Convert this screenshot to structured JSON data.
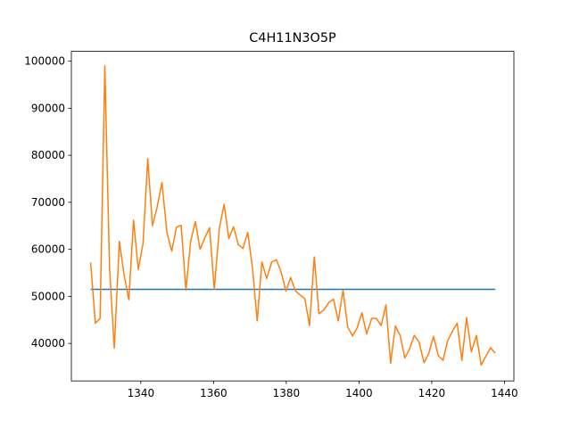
{
  "chart_data": {
    "type": "line",
    "title": "C4H11N3O5P",
    "xlim": [
      1320.9,
      1442.6
    ],
    "ylim": [
      32025,
      102090
    ],
    "xticks": [
      1340,
      1360,
      1380,
      1400,
      1420,
      1440
    ],
    "yticks": [
      40000,
      50000,
      60000,
      70000,
      80000,
      90000,
      100000
    ],
    "grid": false,
    "series": [
      {
        "color": "#1f77b4",
        "x": [
          1326.2,
          1437.5
        ],
        "values": [
          51500,
          51500
        ]
      },
      {
        "color": "#ff7f0e",
        "x": [
          1326.2,
          1327.5,
          1328.8,
          1330.1,
          1331.4,
          1332.7,
          1334.1,
          1335.4,
          1336.7,
          1338.0,
          1339.3,
          1340.6,
          1341.9,
          1343.2,
          1344.5,
          1345.8,
          1347.2,
          1348.5,
          1349.8,
          1351.1,
          1352.4,
          1353.7,
          1355.0,
          1356.3,
          1357.6,
          1358.9,
          1360.2,
          1361.6,
          1362.9,
          1364.2,
          1365.5,
          1366.8,
          1368.1,
          1369.4,
          1370.7,
          1372.0,
          1373.3,
          1374.6,
          1376.0,
          1377.3,
          1378.6,
          1379.9,
          1381.2,
          1382.5,
          1383.8,
          1385.1,
          1386.4,
          1387.7,
          1389.0,
          1390.4,
          1391.7,
          1393.0,
          1394.3,
          1395.6,
          1396.9,
          1398.2,
          1399.5,
          1400.8,
          1402.1,
          1403.5,
          1404.8,
          1406.1,
          1407.4,
          1408.7,
          1410.0,
          1411.3,
          1412.6,
          1413.9,
          1415.2,
          1416.5,
          1417.9,
          1419.2,
          1420.5,
          1421.8,
          1423.1,
          1424.4,
          1425.7,
          1427.0,
          1428.3,
          1429.6,
          1430.9,
          1432.3,
          1433.6,
          1434.9,
          1436.2,
          1437.5
        ],
        "values": [
          57200,
          44300,
          45300,
          99000,
          56000,
          39000,
          61700,
          54500,
          49300,
          66200,
          55700,
          61200,
          79300,
          65000,
          69000,
          74200,
          63500,
          59600,
          64700,
          65100,
          51300,
          61700,
          65900,
          60000,
          62400,
          64600,
          51500,
          64500,
          69600,
          62300,
          64800,
          61000,
          60200,
          63600,
          56100,
          44800,
          57300,
          53800,
          57300,
          57800,
          55100,
          51100,
          54000,
          51200,
          50300,
          49500,
          43800,
          58400,
          46300,
          47200,
          48700,
          49400,
          44800,
          51300,
          43500,
          41600,
          43300,
          46500,
          42000,
          45300,
          45300,
          43800,
          48200,
          35800,
          43700,
          41700,
          36900,
          38800,
          41700,
          40300,
          35900,
          37900,
          41500,
          37400,
          36400,
          40600,
          42600,
          44300,
          36400,
          45500,
          38200,
          41700,
          35400,
          37300,
          39100,
          37900
        ]
      }
    ]
  }
}
